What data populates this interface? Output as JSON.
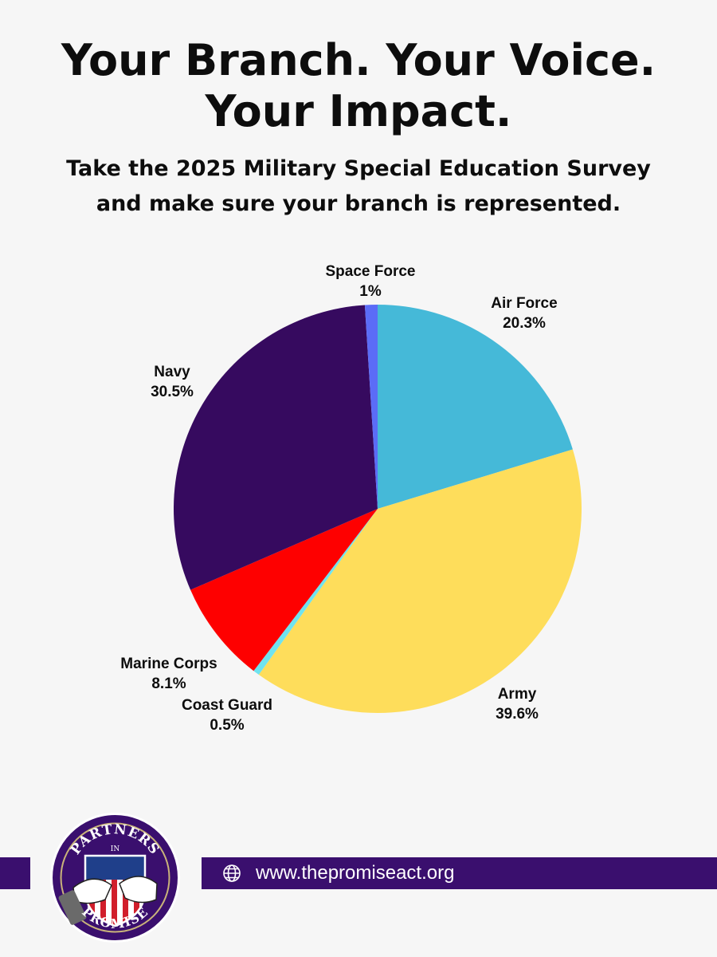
{
  "header": {
    "title_line1": "Your Branch. Your Voice.",
    "title_line2": "Your Impact.",
    "subtitle_line1": "Take the 2025 Military Special Education Survey",
    "subtitle_line2": "and make sure your branch is represented."
  },
  "chart_data": {
    "type": "pie",
    "title": "",
    "start": "12 o'clock",
    "direction": "clockwise",
    "slices": [
      {
        "label": "Air Force",
        "value": 20.3,
        "value_label": "20.3%",
        "color": "#45b9d8"
      },
      {
        "label": "Army",
        "value": 39.6,
        "value_label": "39.6%",
        "color": "#fedd5b"
      },
      {
        "label": "Coast Guard",
        "value": 0.5,
        "value_label": "0.5%",
        "color": "#6fe3ef"
      },
      {
        "label": "Marine Corps",
        "value": 8.1,
        "value_label": "8.1%",
        "color": "#fe0000"
      },
      {
        "label": "Navy",
        "value": 30.5,
        "value_label": "30.5%",
        "color": "#360a5f"
      },
      {
        "label": "Space Force",
        "value": 1,
        "value_label": "1%",
        "color": "#5b6cf7"
      }
    ]
  },
  "footer": {
    "url": "www.thepromiseact.org",
    "logo_text_top": "PARTNERS",
    "logo_text_mid": "IN",
    "logo_text_bottom": "PROMISE",
    "bar_color": "#3a0f6e"
  },
  "icons": {
    "globe": "globe-icon",
    "logo": "partners-in-promise-logo"
  }
}
